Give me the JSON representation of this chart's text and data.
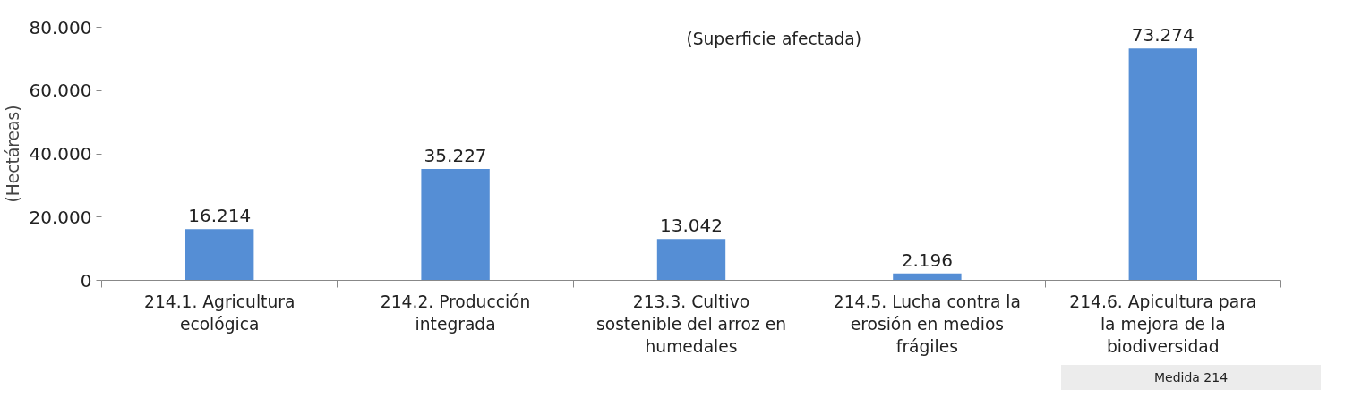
{
  "chart_data": {
    "type": "bar",
    "title": "(Superficie afectada)",
    "ylabel": "(Hectáreas)",
    "categories": [
      "214.1. Agricultura ecológica",
      "214.2. Producción integrada",
      "213.3. Cultivo sostenible del arroz en humedales",
      "214.5. Lucha contra la erosión en medios frágiles",
      "214.6. Apicultura para la mejora de la biodiversidad"
    ],
    "values": [
      16214,
      35227,
      13042,
      2196,
      73274
    ],
    "value_labels": [
      "16.214",
      "35.227",
      "13.042",
      "2.196",
      "73.274"
    ],
    "color": "#558ed5",
    "ylim": [
      0,
      80000
    ],
    "yticks": [
      {
        "value": 0,
        "label": "0"
      },
      {
        "value": 20000,
        "label": "20.000"
      },
      {
        "value": 40000,
        "label": "40.000"
      },
      {
        "value": 60000,
        "label": "60.000"
      },
      {
        "value": 80000,
        "label": "80.000"
      }
    ],
    "grid": false,
    "annotations": [
      "Medida 214"
    ]
  }
}
